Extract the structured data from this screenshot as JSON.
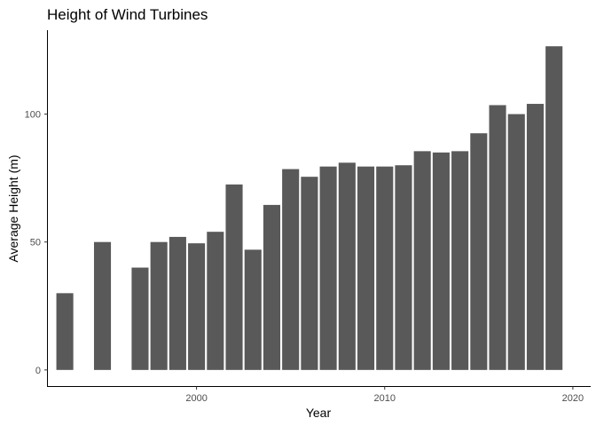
{
  "chart_data": {
    "type": "bar",
    "title": "Height of Wind Turbines",
    "xlabel": "Year",
    "ylabel": "Average Height (m)",
    "x": [
      1993,
      1995,
      1997,
      1998,
      1999,
      2000,
      2001,
      2002,
      2003,
      2004,
      2005,
      2006,
      2007,
      2008,
      2009,
      2010,
      2011,
      2012,
      2013,
      2014,
      2015,
      2016,
      2017,
      2018,
      2019
    ],
    "values": [
      30,
      50,
      40,
      50,
      52,
      49.5,
      54,
      72.5,
      47,
      64.5,
      78.5,
      75.5,
      79.5,
      81,
      79.5,
      79.5,
      80,
      85.5,
      85,
      85.5,
      92.5,
      103.5,
      100,
      104,
      126.5
    ],
    "xlim": [
      1992.1,
      2020.9
    ],
    "ylim": [
      -6.3,
      132.8
    ],
    "xticks": [
      2000,
      2010,
      2020
    ],
    "yticks": [
      0,
      50,
      100
    ],
    "bar_color": "#595959",
    "grid": false,
    "legend": "none"
  }
}
